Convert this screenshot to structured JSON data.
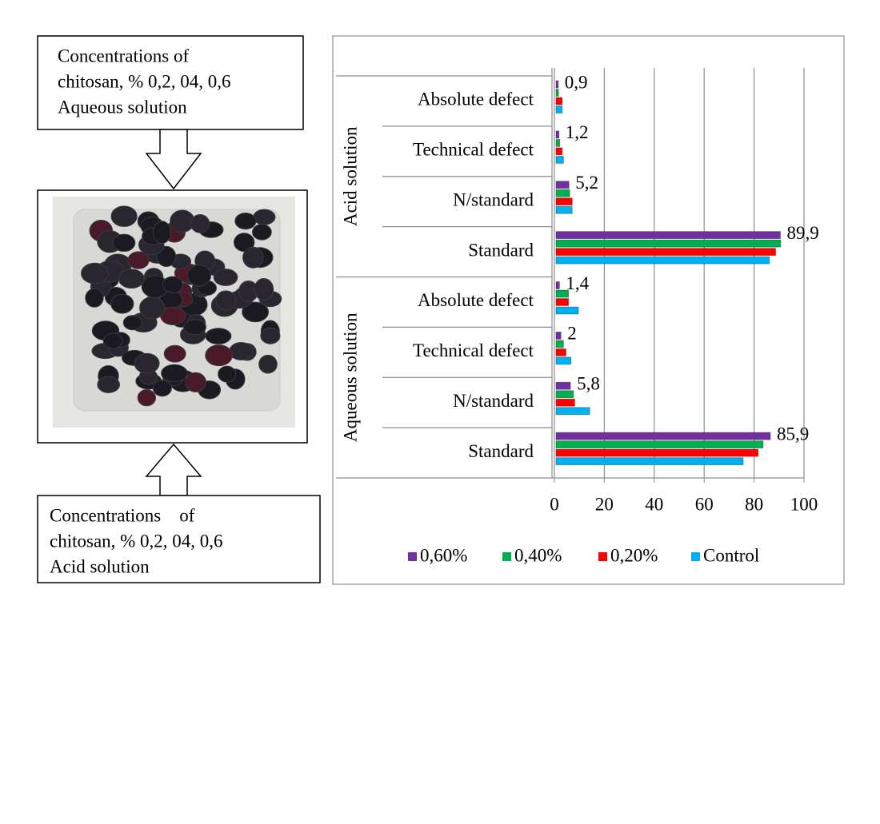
{
  "diagram": {
    "top_box": {
      "lines": [
        "Concentrations of",
        "chitosan, % 0,2, 04, 0,6",
        "Aqueous solution"
      ]
    },
    "bottom_box": {
      "lines": [
        "Concentrations    of",
        "chitosan, % 0,2, 04, 0,6",
        "Acid solution"
      ]
    }
  },
  "chart_data": {
    "type": "hbar",
    "groups": [
      "Acid solution",
      "Aqueous solution"
    ],
    "categories": [
      "Absolute defect",
      "Technical defect",
      "N/standard",
      "Standard",
      "Absolute defect",
      "Technical defect",
      "N/standard",
      "Standard"
    ],
    "series": [
      {
        "name": "0,60%",
        "color": "#7030a0",
        "values": [
          0.9,
          1.2,
          5.2,
          89.9,
          1.4,
          2,
          5.8,
          85.9
        ],
        "value_labels": [
          "0,9",
          "1,2",
          "5,2",
          "89,9",
          "1,4",
          "2",
          "5,8",
          "85,9"
        ]
      },
      {
        "name": "0,40%",
        "color": "#00b050",
        "values": [
          1,
          1.5,
          5.5,
          90,
          5,
          3,
          7,
          83
        ]
      },
      {
        "name": "0,20%",
        "color": "#ff0000",
        "values": [
          2.5,
          2.5,
          6.5,
          88,
          5,
          4,
          7.5,
          81
        ]
      },
      {
        "name": "Control",
        "color": "#00b0f0",
        "values": [
          2.5,
          3,
          6.5,
          85.5,
          9,
          6,
          13.5,
          75
        ]
      }
    ],
    "xlim": [
      0,
      100
    ],
    "xticks": [
      0,
      20,
      40,
      60,
      80,
      100
    ],
    "grid": true,
    "legend": "bottom"
  }
}
